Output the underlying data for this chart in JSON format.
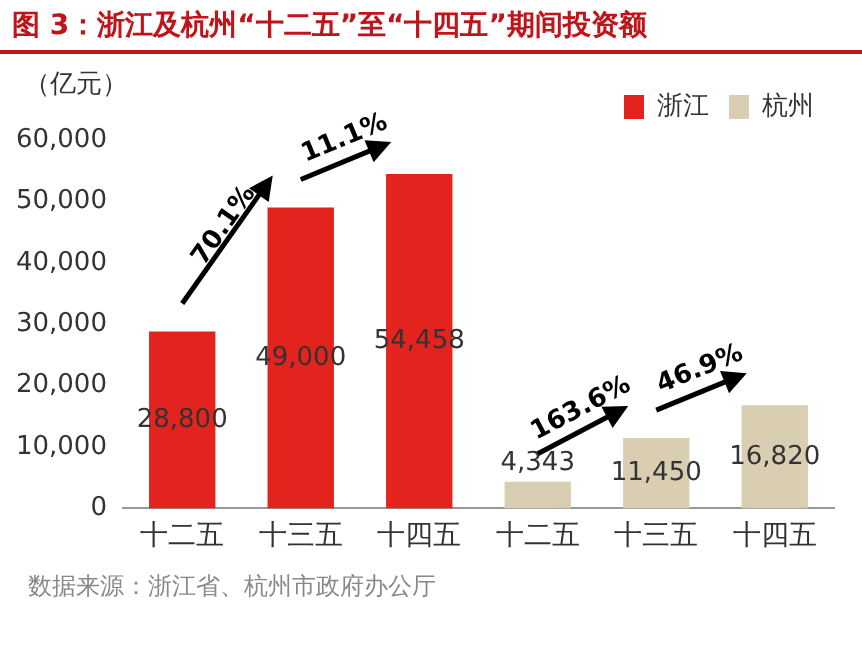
{
  "chart_data": {
    "type": "bar",
    "title": "图 3：浙江及杭州“十二五”至“十四五”期间投资额",
    "ylabel": "（亿元）",
    "categories": [
      "十二五",
      "十三五",
      "十四五",
      "十二五",
      "十三五",
      "十四五"
    ],
    "series": [
      {
        "name": "浙江",
        "color": "#e3241e",
        "values": [
          28800,
          49000,
          54458,
          null,
          null,
          null
        ],
        "value_labels": [
          "28,800",
          "49,000",
          "54,458",
          null,
          null,
          null
        ]
      },
      {
        "name": "杭州",
        "color": "#d9ceb1",
        "values": [
          null,
          null,
          null,
          4343,
          11450,
          16820
        ],
        "value_labels": [
          null,
          null,
          null,
          "4,343",
          "11,450",
          "16,820"
        ]
      }
    ],
    "ylim": [
      0,
      60000
    ],
    "yticks": [
      0,
      {
        "value": 10000,
        "label": "10,000"
      },
      {
        "value": 20000,
        "label": "20,000"
      },
      {
        "value": 30000,
        "label": "30,000"
      },
      {
        "value": 40000,
        "label": "40,000"
      },
      {
        "value": 50000,
        "label": "50,000"
      },
      {
        "value": 60000,
        "label": "60,000"
      }
    ],
    "grid": false,
    "legend": "top right",
    "annotations": [
      "70.1%",
      "11.1%",
      "163.6%",
      "46.9%",
      "数据来源：浙江省、杭州市政府办公厅"
    ]
  }
}
